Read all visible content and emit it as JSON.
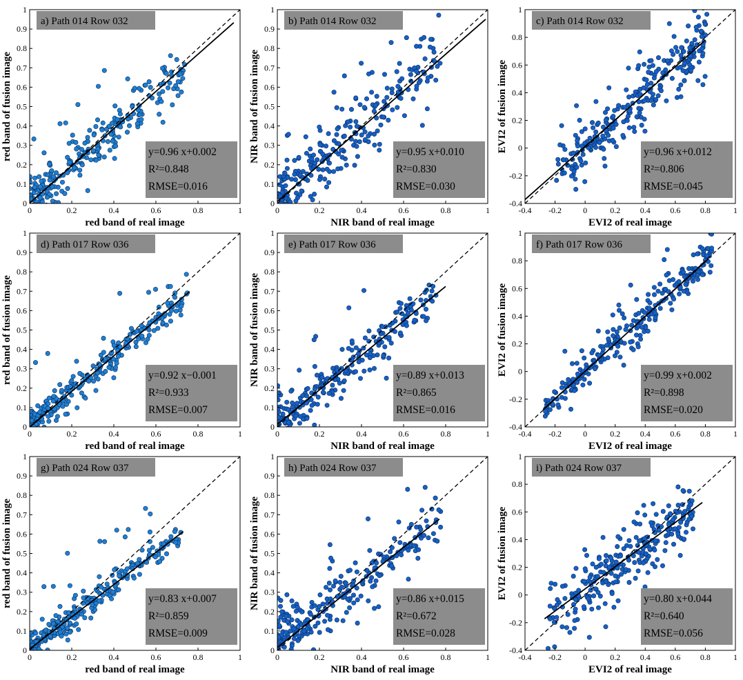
{
  "figure": {
    "point_color": "#1f7fd4",
    "point_color_b": "#1660c8",
    "point_edge": "#0a2f5a",
    "box_color": "#8c8c8c"
  },
  "chart_data": [
    {
      "id": "a",
      "type": "scatter",
      "title": "a) Path 014 Row 032",
      "xlabel": "red band of real image",
      "ylabel": "red band of fusion image",
      "xlim": [
        0,
        1
      ],
      "ylim": [
        0,
        1
      ],
      "xticks": [
        0,
        0.2,
        0.4,
        0.6,
        0.8,
        1
      ],
      "yticks": [
        0,
        0.1,
        0.2,
        0.3,
        0.4,
        0.5,
        0.6,
        0.7,
        0.8,
        0.9,
        1
      ],
      "xtick_labels": [
        "0",
        "0.2",
        "0.4",
        "0.6",
        "0.8",
        "1"
      ],
      "ytick_labels": [
        "0",
        "0.1",
        "0.2",
        "0.3",
        "0.4",
        "0.5",
        "0.6",
        "0.7",
        "0.8",
        "0.9",
        "1"
      ],
      "slope": 0.96,
      "intercept": 0.002,
      "fit_xrange": [
        0,
        0.97
      ],
      "one_to_one": true,
      "stats": [
        "y=0.96 x+0.002",
        "R²=0.848",
        "RMSE=0.016"
      ],
      "point_range": [
        0,
        0.75
      ],
      "spread": 0.06
    },
    {
      "id": "b",
      "type": "scatter",
      "title": "b) Path 014 Row 032",
      "xlabel": "NIR band of real image",
      "ylabel": "NIR band of fusion image",
      "xlim": [
        0,
        1
      ],
      "ylim": [
        0,
        1
      ],
      "xticks": [
        0,
        0.2,
        0.4,
        0.6,
        0.8,
        1
      ],
      "yticks": [
        0,
        0.1,
        0.2,
        0.3,
        0.4,
        0.5,
        0.6,
        0.7,
        0.8,
        0.9,
        1
      ],
      "xtick_labels": [
        "0",
        "0.2",
        "0.4",
        "0.6",
        "0.8",
        "1"
      ],
      "ytick_labels": [
        "0",
        "0.1",
        "0.2",
        "0.3",
        "0.4",
        "0.5",
        "0.6",
        "0.7",
        "0.8",
        "0.9",
        "1"
      ],
      "slope": 0.95,
      "intercept": 0.01,
      "fit_xrange": [
        0,
        0.99
      ],
      "one_to_one": true,
      "stats": [
        "y=0.95 x+0.010",
        "R²=0.830",
        "RMSE=0.030"
      ],
      "point_range": [
        0,
        0.78
      ],
      "spread": 0.09
    },
    {
      "id": "c",
      "type": "scatter",
      "title": "c) Path 014 Row 032",
      "xlabel": "EVI2 of real image",
      "ylabel": "EVI2 of fusion image",
      "xlim": [
        -0.4,
        1
      ],
      "ylim": [
        -0.4,
        1
      ],
      "xticks": [
        -0.4,
        -0.2,
        0,
        0.2,
        0.4,
        0.6,
        0.8,
        1
      ],
      "yticks": [
        -0.4,
        -0.2,
        0,
        0.2,
        0.4,
        0.6,
        0.8,
        1
      ],
      "xtick_labels": [
        "-0.4",
        "-0.2",
        "0",
        "0.2",
        "0.4",
        "0.6",
        "0.8",
        "1"
      ],
      "ytick_labels": [
        "-0.4",
        "-0.2",
        "0",
        "0.2",
        "0.4",
        "0.6",
        "0.8",
        "1"
      ],
      "slope": 0.96,
      "intercept": 0.012,
      "fit_xrange": [
        -0.4,
        0.8
      ],
      "one_to_one": true,
      "stats": [
        "y=0.96 x+0.012",
        "R²=0.806",
        "RMSE=0.045"
      ],
      "point_range": [
        -0.2,
        0.82
      ],
      "spread": 0.12
    },
    {
      "id": "d",
      "type": "scatter",
      "title": "d) Path 017 Row 036",
      "xlabel": "red band of real image",
      "ylabel": "red band of fusion image",
      "xlim": [
        0,
        1
      ],
      "ylim": [
        0,
        1
      ],
      "xticks": [
        0,
        0.2,
        0.4,
        0.6,
        0.8,
        1
      ],
      "yticks": [
        0,
        0.1,
        0.2,
        0.3,
        0.4,
        0.5,
        0.6,
        0.7,
        0.8,
        0.9,
        1
      ],
      "xtick_labels": [
        "0",
        "0.2",
        "0.4",
        "0.6",
        "0.8",
        "1"
      ],
      "ytick_labels": [
        "0",
        "0.1",
        "0.2",
        "0.3",
        "0.4",
        "0.5",
        "0.6",
        "0.7",
        "0.8",
        "0.9",
        "1"
      ],
      "slope": 0.92,
      "intercept": -0.001,
      "fit_xrange": [
        0,
        0.76
      ],
      "one_to_one": true,
      "stats": [
        "y=0.92 x−0.001",
        "R²=0.933",
        "RMSE=0.007"
      ],
      "point_range": [
        0,
        0.75
      ],
      "spread": 0.04
    },
    {
      "id": "e",
      "type": "scatter",
      "title": "e) Path 017 Row 036",
      "xlabel": "NIR band of real image",
      "ylabel": "NIR band of fusion image",
      "xlim": [
        0,
        1
      ],
      "ylim": [
        0,
        1
      ],
      "xticks": [
        0,
        0.2,
        0.4,
        0.6,
        0.8,
        1
      ],
      "yticks": [
        0,
        0.1,
        0.2,
        0.3,
        0.4,
        0.5,
        0.6,
        0.7,
        0.8,
        0.9,
        1
      ],
      "xtick_labels": [
        "0",
        "0.2",
        "0.4",
        "0.6",
        "0.8",
        "1"
      ],
      "ytick_labels": [
        "0",
        "0.1",
        "0.2",
        "0.3",
        "0.4",
        "0.5",
        "0.6",
        "0.7",
        "0.8",
        "0.9",
        "1"
      ],
      "slope": 0.89,
      "intercept": 0.013,
      "fit_xrange": [
        0,
        0.8
      ],
      "one_to_one": true,
      "stats": [
        "y=0.89 x+0.013",
        "R²=0.865",
        "RMSE=0.016"
      ],
      "point_range": [
        0,
        0.78
      ],
      "spread": 0.06
    },
    {
      "id": "f",
      "type": "scatter",
      "title": "f) Path 017 Row 036",
      "xlabel": "EVI2 of real image",
      "ylabel": "EVI2 of fusion image",
      "xlim": [
        -0.4,
        1
      ],
      "ylim": [
        -0.4,
        1
      ],
      "xticks": [
        -0.4,
        -0.2,
        0,
        0.2,
        0.4,
        0.6,
        0.8,
        1
      ],
      "yticks": [
        -0.4,
        -0.2,
        0,
        0.2,
        0.4,
        0.6,
        0.8,
        1
      ],
      "xtick_labels": [
        "-0.4",
        "-0.2",
        "0",
        "0.2",
        "0.4",
        "0.6",
        "0.8",
        "1"
      ],
      "ytick_labels": [
        "-0.4",
        "-0.2",
        "0",
        "0.2",
        "0.4",
        "0.6",
        "0.8",
        "1"
      ],
      "slope": 0.99,
      "intercept": 0.002,
      "fit_xrange": [
        -0.28,
        0.82
      ],
      "one_to_one": true,
      "stats": [
        "y=0.99 x+0.002",
        "R²=0.898",
        "RMSE=0.020"
      ],
      "point_range": [
        -0.28,
        0.85
      ],
      "spread": 0.07
    },
    {
      "id": "g",
      "type": "scatter",
      "title": "g) Path 024 Row 037",
      "xlabel": "red band of real image",
      "ylabel": "red band of fusion image",
      "xlim": [
        0,
        1
      ],
      "ylim": [
        0,
        1
      ],
      "xticks": [
        0,
        0.2,
        0.4,
        0.6,
        0.8,
        1
      ],
      "yticks": [
        0,
        0.1,
        0.2,
        0.3,
        0.4,
        0.5,
        0.6,
        0.7,
        0.8,
        0.9,
        1
      ],
      "xtick_labels": [
        "0",
        "0.2",
        "0.4",
        "0.6",
        "0.8",
        "1"
      ],
      "ytick_labels": [
        "0",
        "0.1",
        "0.2",
        "0.3",
        "0.4",
        "0.5",
        "0.6",
        "0.7",
        "0.8",
        "0.9",
        "1"
      ],
      "slope": 0.83,
      "intercept": 0.007,
      "fit_xrange": [
        0,
        0.73
      ],
      "one_to_one": true,
      "stats": [
        "y=0.83 x+0.007",
        "R²=0.859",
        "RMSE=0.009"
      ],
      "point_range": [
        0,
        0.72
      ],
      "spread": 0.035
    },
    {
      "id": "h",
      "type": "scatter",
      "title": "h) Path 024 Row 037",
      "xlabel": "NIR band of real image",
      "ylabel": "NIR band of fusion image",
      "xlim": [
        0,
        1
      ],
      "ylim": [
        0,
        1
      ],
      "xticks": [
        0,
        0.2,
        0.4,
        0.6,
        0.8,
        1
      ],
      "yticks": [
        0,
        0.1,
        0.2,
        0.3,
        0.4,
        0.5,
        0.6,
        0.7,
        0.8,
        0.9,
        1
      ],
      "xtick_labels": [
        "0",
        "0.2",
        "0.4",
        "0.6",
        "0.8",
        "1"
      ],
      "ytick_labels": [
        "0",
        "0.1",
        "0.2",
        "0.3",
        "0.4",
        "0.5",
        "0.6",
        "0.7",
        "0.8",
        "0.9",
        "1"
      ],
      "slope": 0.86,
      "intercept": 0.015,
      "fit_xrange": [
        0,
        0.77
      ],
      "one_to_one": true,
      "stats": [
        "y=0.86 x+0.015",
        "R²=0.672",
        "RMSE=0.028"
      ],
      "point_range": [
        0,
        0.78
      ],
      "spread": 0.07
    },
    {
      "id": "i",
      "type": "scatter",
      "title": "i) Path 024 Row 037",
      "xlabel": "EVI2 of real image",
      "ylabel": "EVI2 of fusion image",
      "xlim": [
        -0.4,
        1
      ],
      "ylim": [
        -0.4,
        1
      ],
      "xticks": [
        -0.4,
        -0.2,
        0,
        0.2,
        0.4,
        0.6,
        0.8,
        1
      ],
      "yticks": [
        -0.4,
        -0.2,
        0,
        0.2,
        0.4,
        0.6,
        0.8,
        1
      ],
      "xtick_labels": [
        "-0.4",
        "-0.2",
        "0",
        "0.2",
        "0.4",
        "0.6",
        "0.8",
        "1"
      ],
      "ytick_labels": [
        "-0.4",
        "-0.2",
        "0",
        "0.2",
        "0.4",
        "0.6",
        "0.8",
        "1"
      ],
      "slope": 0.8,
      "intercept": 0.044,
      "fit_xrange": [
        -0.27,
        0.78
      ],
      "one_to_one": true,
      "stats": [
        "y=0.80 x+0.044",
        "R²=0.640",
        "RMSE=0.056"
      ],
      "point_range": [
        -0.25,
        0.72
      ],
      "spread": 0.1
    }
  ]
}
